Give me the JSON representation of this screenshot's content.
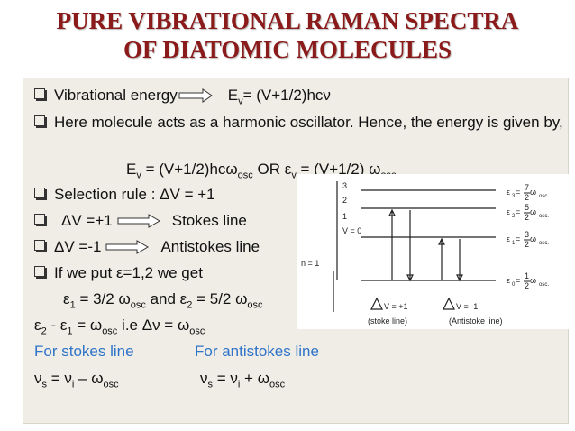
{
  "title": [
    "PURE VIBRATIONAL RAMAN SPECTRA",
    "OF DIATOMIC MOLECULES"
  ],
  "lines": [
    [
      "Vibrational energy",
      "E",
      "v",
      "= (V+1/2)hcν"
    ],
    [
      "Here molecule acts as a harmonic oscillator. Hence, the energy is given by,"
    ],
    [
      "E",
      "v",
      " = (V+1/2)hcω",
      "osc",
      "  OR ε",
      "v",
      " = (V+1/2) ω",
      "osc"
    ],
    [
      "Selection rule : ΔV = +1"
    ],
    [
      "ΔV =+1",
      "Stokes line"
    ],
    [
      "ΔV =-1",
      "Antistokes line"
    ],
    [
      "If we put ε=1,2 we get"
    ],
    [
      "ε",
      "1",
      " = 3/2 ω",
      "osc",
      "  and  ε",
      "2",
      " = 5/2 ω",
      "osc"
    ],
    [
      "ε",
      "2",
      " - ε",
      "1",
      " = ω",
      "osc",
      "    i.e Δν = ω",
      "osc"
    ],
    [
      "For stokes line",
      "For antistokes line"
    ],
    [
      "ν",
      "s",
      " = ν",
      "i",
      " – ω",
      "osc",
      "ν",
      "s",
      " = ν",
      "i",
      " + ω",
      "osc"
    ]
  ],
  "diagram": {
    "levels": [
      "3",
      "2",
      "1",
      "V = 0"
    ],
    "n": "n = 1",
    "energies": [
      [
        "ε",
        "3",
        " = ",
        "7",
        "2",
        " ω",
        "osc."
      ],
      [
        "ε",
        "2",
        " = ",
        "5",
        "2",
        " ω",
        "osc."
      ],
      [
        "ε",
        "1",
        " = ",
        "3",
        "2",
        " ω",
        "osc."
      ],
      [
        "ε",
        "0",
        " = ",
        "1",
        "2",
        " ω",
        "osc."
      ]
    ],
    "transitions": [
      "V = +1",
      "V = -1"
    ],
    "captions": [
      "(stoke line)",
      "(Antistoke line)"
    ]
  }
}
